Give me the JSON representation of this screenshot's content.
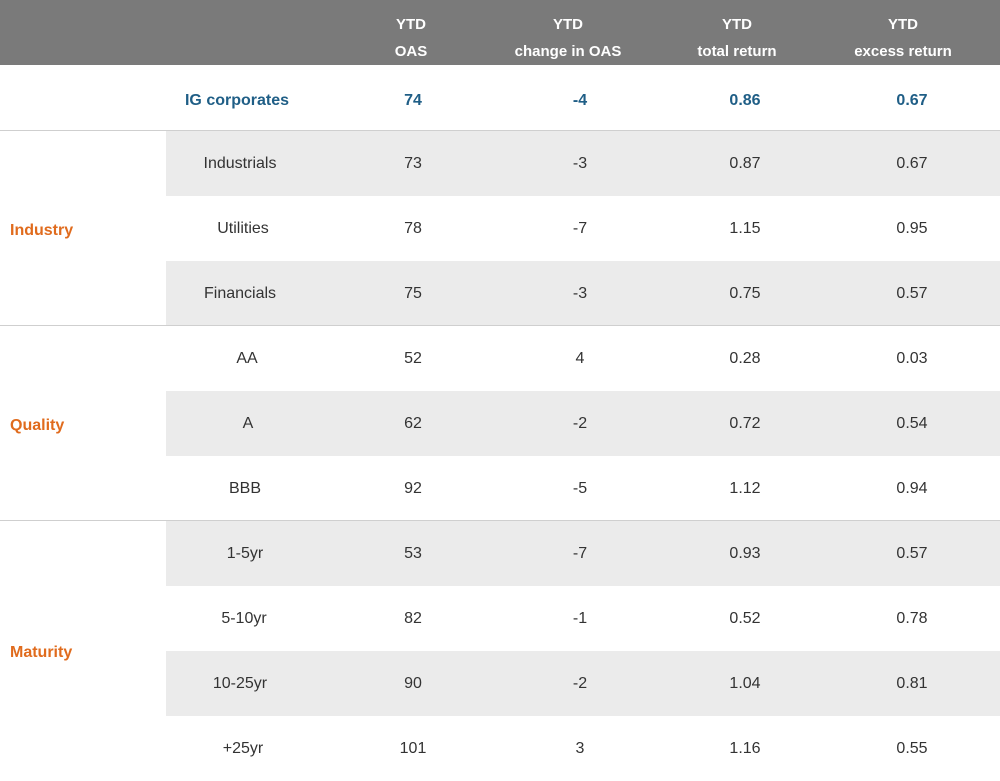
{
  "columns": [
    {
      "line1": "YTD",
      "line2": "OAS"
    },
    {
      "line1": "YTD",
      "line2": "change in OAS"
    },
    {
      "line1": "YTD",
      "line2": "total return"
    },
    {
      "line1": "YTD",
      "line2": "excess return"
    }
  ],
  "colors": {
    "header_bg": "#7a7a7a",
    "group_label": "#e06b1d",
    "highlight_row": "#1f5e86",
    "shade": "#ebebeb"
  },
  "summary": {
    "label": "IG corporates",
    "oas": "74",
    "change": "-4",
    "total": "0.86",
    "excess": "0.67"
  },
  "groups": [
    {
      "name": "Industry",
      "rows": [
        {
          "label": "Industrials",
          "oas": "73",
          "change": "-3",
          "total": "0.87",
          "excess": "0.67"
        },
        {
          "label": "Utilities",
          "oas": "78",
          "change": "-7",
          "total": "1.15",
          "excess": "0.95"
        },
        {
          "label": "Financials",
          "oas": "75",
          "change": "-3",
          "total": "0.75",
          "excess": "0.57"
        }
      ]
    },
    {
      "name": "Quality",
      "rows": [
        {
          "label": "AA",
          "oas": "52",
          "change": "4",
          "total": "0.28",
          "excess": "0.03"
        },
        {
          "label": "A",
          "oas": "62",
          "change": "-2",
          "total": "0.72",
          "excess": "0.54"
        },
        {
          "label": "BBB",
          "oas": "92",
          "change": "-5",
          "total": "1.12",
          "excess": "0.94"
        }
      ]
    },
    {
      "name": "Maturity",
      "rows": [
        {
          "label": "1-5yr",
          "oas": "53",
          "change": "-7",
          "total": "0.93",
          "excess": "0.57"
        },
        {
          "label": "5-10yr",
          "oas": "82",
          "change": "-1",
          "total": "0.52",
          "excess": "0.78"
        },
        {
          "label": "10-25yr",
          "oas": "90",
          "change": "-2",
          "total": "1.04",
          "excess": "0.81"
        },
        {
          "label": "+25yr",
          "oas": "101",
          "change": "3",
          "total": "1.16",
          "excess": "0.55"
        }
      ]
    }
  ],
  "chart_data": {
    "type": "table",
    "columns": [
      "YTD OAS",
      "YTD change in OAS",
      "YTD total return",
      "YTD excess return"
    ],
    "rows": [
      {
        "group": "",
        "label": "IG corporates",
        "values": [
          74,
          -4,
          0.86,
          0.67
        ]
      },
      {
        "group": "Industry",
        "label": "Industrials",
        "values": [
          73,
          -3,
          0.87,
          0.67
        ]
      },
      {
        "group": "Industry",
        "label": "Utilities",
        "values": [
          78,
          -7,
          1.15,
          0.95
        ]
      },
      {
        "group": "Industry",
        "label": "Financials",
        "values": [
          75,
          -3,
          0.75,
          0.57
        ]
      },
      {
        "group": "Quality",
        "label": "AA",
        "values": [
          52,
          4,
          0.28,
          0.03
        ]
      },
      {
        "group": "Quality",
        "label": "A",
        "values": [
          62,
          -2,
          0.72,
          0.54
        ]
      },
      {
        "group": "Quality",
        "label": "BBB",
        "values": [
          92,
          -5,
          1.12,
          0.94
        ]
      },
      {
        "group": "Maturity",
        "label": "1-5yr",
        "values": [
          53,
          -7,
          0.93,
          0.57
        ]
      },
      {
        "group": "Maturity",
        "label": "5-10yr",
        "values": [
          82,
          -1,
          0.52,
          0.78
        ]
      },
      {
        "group": "Maturity",
        "label": "10-25yr",
        "values": [
          90,
          -2,
          1.04,
          0.81
        ]
      },
      {
        "group": "Maturity",
        "label": "+25yr",
        "values": [
          101,
          3,
          1.16,
          0.55
        ]
      }
    ]
  }
}
